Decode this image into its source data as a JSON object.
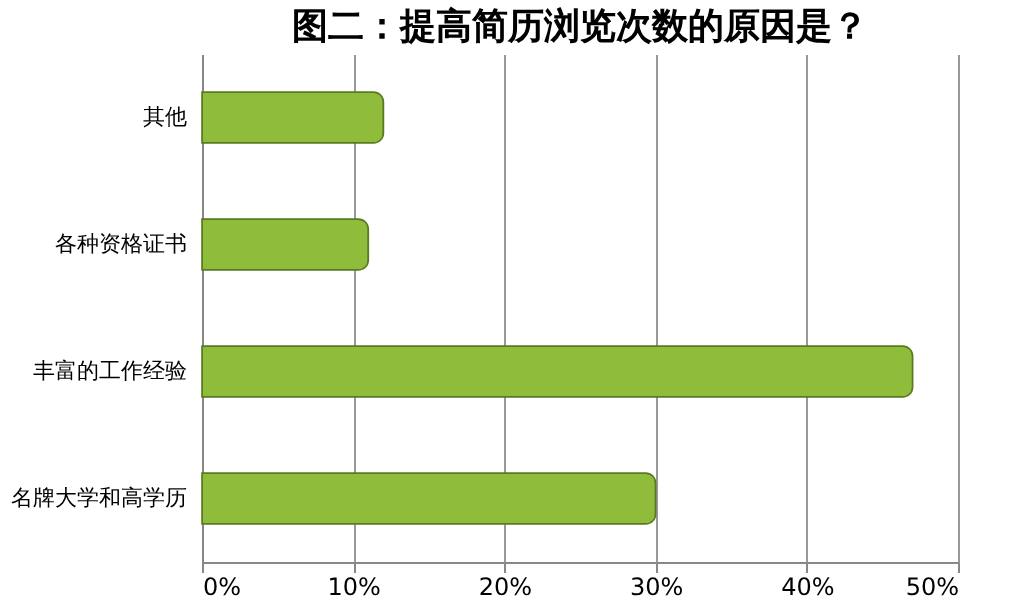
{
  "chart_data": {
    "type": "bar",
    "orientation": "horizontal",
    "title": "图二：提高简历浏览次数的原因是？",
    "categories": [
      "其他",
      "各种资格证书",
      "丰富的工作经验",
      "名牌大学和高学历"
    ],
    "values": [
      12,
      11,
      47,
      30
    ],
    "color": "#8fbc3a",
    "xlim": [
      0,
      50
    ],
    "xticks": [
      {
        "value": 0,
        "label": "0%"
      },
      {
        "value": 10,
        "label": "10%"
      },
      {
        "value": 20,
        "label": "20%"
      },
      {
        "value": 30,
        "label": "30%"
      },
      {
        "value": 40,
        "label": "40%"
      },
      {
        "value": 50,
        "label": "50%"
      }
    ],
    "grid": "x"
  }
}
